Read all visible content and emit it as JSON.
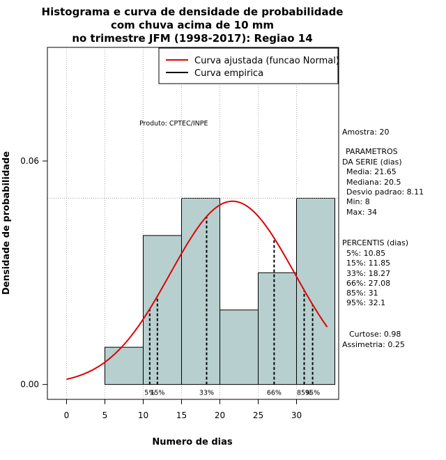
{
  "chart_data": {
    "type": "bar",
    "title_lines": [
      "Histograma e curva de densidade de probabilidade",
      "com chuva acima de 10 mm",
      "no trimestre JFM (1998-2017): Regiao 14"
    ],
    "xlabel": "Numero de dias",
    "ylabel": "Densidade de probabilidade",
    "xlim": [
      -2.5,
      35.5
    ],
    "ylim": [
      -0.004,
      0.0905
    ],
    "x_ticks": [
      0,
      5,
      10,
      15,
      20,
      25,
      30
    ],
    "x_tick_labels": [
      "0",
      "5",
      "10",
      "15",
      "20",
      "25",
      "30"
    ],
    "y_ticks": [
      0.0,
      0.06
    ],
    "y_tick_labels": [
      "0.00",
      "0.06"
    ],
    "grid": true,
    "bins": [
      {
        "x0": 5,
        "x1": 10,
        "density": 0.01
      },
      {
        "x0": 10,
        "x1": 15,
        "density": 0.04
      },
      {
        "x0": 15,
        "x1": 20,
        "density": 0.05
      },
      {
        "x0": 20,
        "x1": 25,
        "density": 0.02
      },
      {
        "x0": 25,
        "x1": 30,
        "density": 0.03
      },
      {
        "x0": 30,
        "x1": 35,
        "density": 0.05
      }
    ],
    "bar_color": "#b7cfcf",
    "reference_line_y": 0.05,
    "normal_fit": {
      "mean": 21.65,
      "sd": 8.11,
      "x_from": 0,
      "x_to": 34,
      "color": "#e00000"
    },
    "percentile_lines": [
      {
        "label": "5%",
        "x": 10.85
      },
      {
        "label": "15%",
        "x": 11.85
      },
      {
        "label": "33%",
        "x": 18.27
      },
      {
        "label": "66%",
        "x": 27.08
      },
      {
        "label": "85%",
        "x": 31
      },
      {
        "label": "95%",
        "x": 32.1
      }
    ],
    "legend": {
      "position": "top-right",
      "entries": [
        {
          "label": "Curva ajustada (funcao Normal)",
          "color": "#e00000"
        },
        {
          "label": "Curva empirica",
          "color": "#000000"
        }
      ]
    },
    "annotation": "Produto: CPTEC/INPE"
  },
  "side_panel": {
    "sample": "Amostra: 20",
    "params_title_1": "PARAMETROS",
    "params_title_2": "DA SERIE (dias)",
    "media": "Media: 21.65",
    "mediana": "Mediana: 20.5",
    "desvio": "Desvio padrao: 8.11",
    "min": "Min: 8",
    "max": "Max: 34",
    "pct_title": "PERCENTIS (dias)",
    "p5": "5%: 10.85",
    "p15": "15%: 11.85",
    "p33": "33%: 18.27",
    "p66": "66%: 27.08",
    "p85": "85%: 31",
    "p95": "95%: 32.1",
    "curtose": "Curtose: 0.98",
    "assimetria": "Assimetria: 0.25"
  }
}
